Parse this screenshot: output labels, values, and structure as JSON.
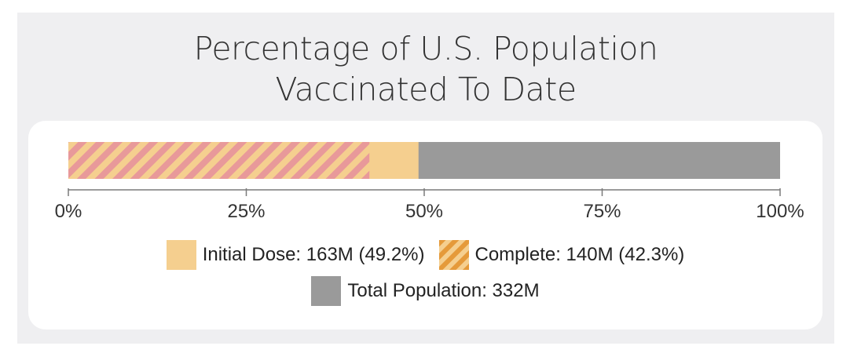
{
  "chart_data": {
    "type": "bar",
    "orientation": "horizontal",
    "stacked": "overlay",
    "title": [
      "Percentage of U.S. Population",
      "Vaccinated To Date"
    ],
    "xlim": [
      0,
      100
    ],
    "x_ticks": [
      "0%",
      "25%",
      "50%",
      "75%",
      "100%"
    ],
    "x_tick_values": [
      0,
      25,
      50,
      75,
      100
    ],
    "series": [
      {
        "key": "total",
        "name": "Total Population: 332M",
        "value": 100,
        "color": "#9a9a9a",
        "pattern": "solid"
      },
      {
        "key": "initial",
        "name": "Initial Dose: 163M (49.2%)",
        "value": 49.2,
        "color": "#f5cf8f",
        "pattern": "solid"
      },
      {
        "key": "complete",
        "name": "Complete: 140M (42.3%)",
        "value": 42.3,
        "color": "#f5cf8f",
        "stripe_color": "#e8999a",
        "legend_stripe_color": "#e59a3a",
        "pattern": "diagonal-stripes"
      }
    ],
    "legend_placement": "bottom-center"
  },
  "colors": {
    "panel_background": "#efeff1",
    "card_background": "#ffffff",
    "axis": "#7a7a7a"
  }
}
